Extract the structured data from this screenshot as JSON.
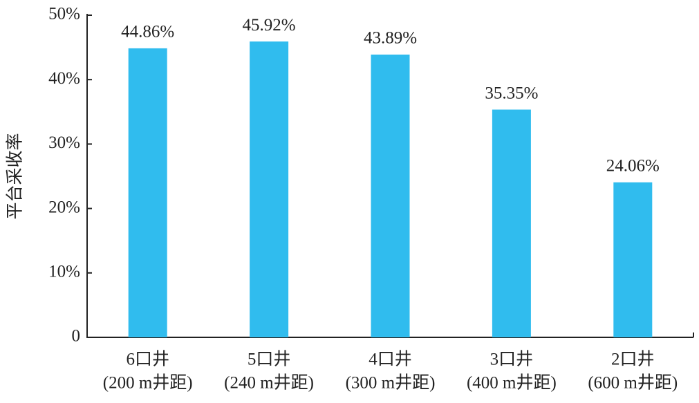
{
  "chart_data": {
    "type": "bar",
    "y_label": "平台采收率",
    "categories": [
      [
        "6口井",
        "(200 m井距)"
      ],
      [
        "5口井",
        "(240 m井距)"
      ],
      [
        "4口井",
        "(300 m井距)"
      ],
      [
        "3口井",
        "(400 m井距)"
      ],
      [
        "2口井",
        "(600 m井距)"
      ]
    ],
    "values": [
      44.86,
      45.92,
      43.89,
      35.35,
      24.06
    ],
    "value_labels": [
      "44.86%",
      "45.92%",
      "43.89%",
      "35.35%",
      "24.06%"
    ],
    "color": "#30bcee",
    "ylim": [
      0,
      50
    ],
    "yticks": [
      0,
      {
        "value": 10,
        "label": "10%"
      },
      {
        "value": 20,
        "label": "20%"
      },
      {
        "value": 30,
        "label": "30%"
      },
      {
        "value": 40,
        "label": "40%"
      },
      {
        "value": 50,
        "label": "50%"
      }
    ],
    "grid": false
  }
}
